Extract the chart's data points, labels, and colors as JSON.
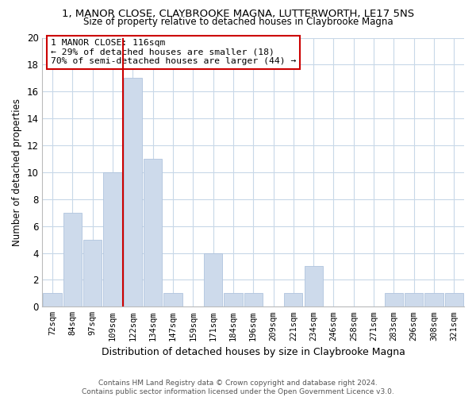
{
  "title1": "1, MANOR CLOSE, CLAYBROOKE MAGNA, LUTTERWORTH, LE17 5NS",
  "title2": "Size of property relative to detached houses in Claybrooke Magna",
  "xlabel": "Distribution of detached houses by size in Claybrooke Magna",
  "ylabel": "Number of detached properties",
  "bin_labels": [
    "72sqm",
    "84sqm",
    "97sqm",
    "109sqm",
    "122sqm",
    "134sqm",
    "147sqm",
    "159sqm",
    "171sqm",
    "184sqm",
    "196sqm",
    "209sqm",
    "221sqm",
    "234sqm",
    "246sqm",
    "258sqm",
    "271sqm",
    "283sqm",
    "296sqm",
    "308sqm",
    "321sqm"
  ],
  "bar_heights": [
    1,
    7,
    5,
    10,
    17,
    11,
    1,
    0,
    4,
    1,
    1,
    0,
    1,
    3,
    0,
    0,
    0,
    1,
    1,
    1,
    1
  ],
  "bar_color": "#cddaeb",
  "bar_edge_color": "#b0c4de",
  "vline_x": 3.5,
  "vline_color": "#cc0000",
  "annotation_title": "1 MANOR CLOSE: 116sqm",
  "annotation_line1": "← 29% of detached houses are smaller (18)",
  "annotation_line2": "70% of semi-detached houses are larger (44) →",
  "ylim": [
    0,
    20
  ],
  "yticks": [
    0,
    2,
    4,
    6,
    8,
    10,
    12,
    14,
    16,
    18,
    20
  ],
  "footer1": "Contains HM Land Registry data © Crown copyright and database right 2024.",
  "footer2": "Contains public sector information licensed under the Open Government Licence v3.0.",
  "bg_color": "#ffffff",
  "grid_color": "#c8d8e8"
}
